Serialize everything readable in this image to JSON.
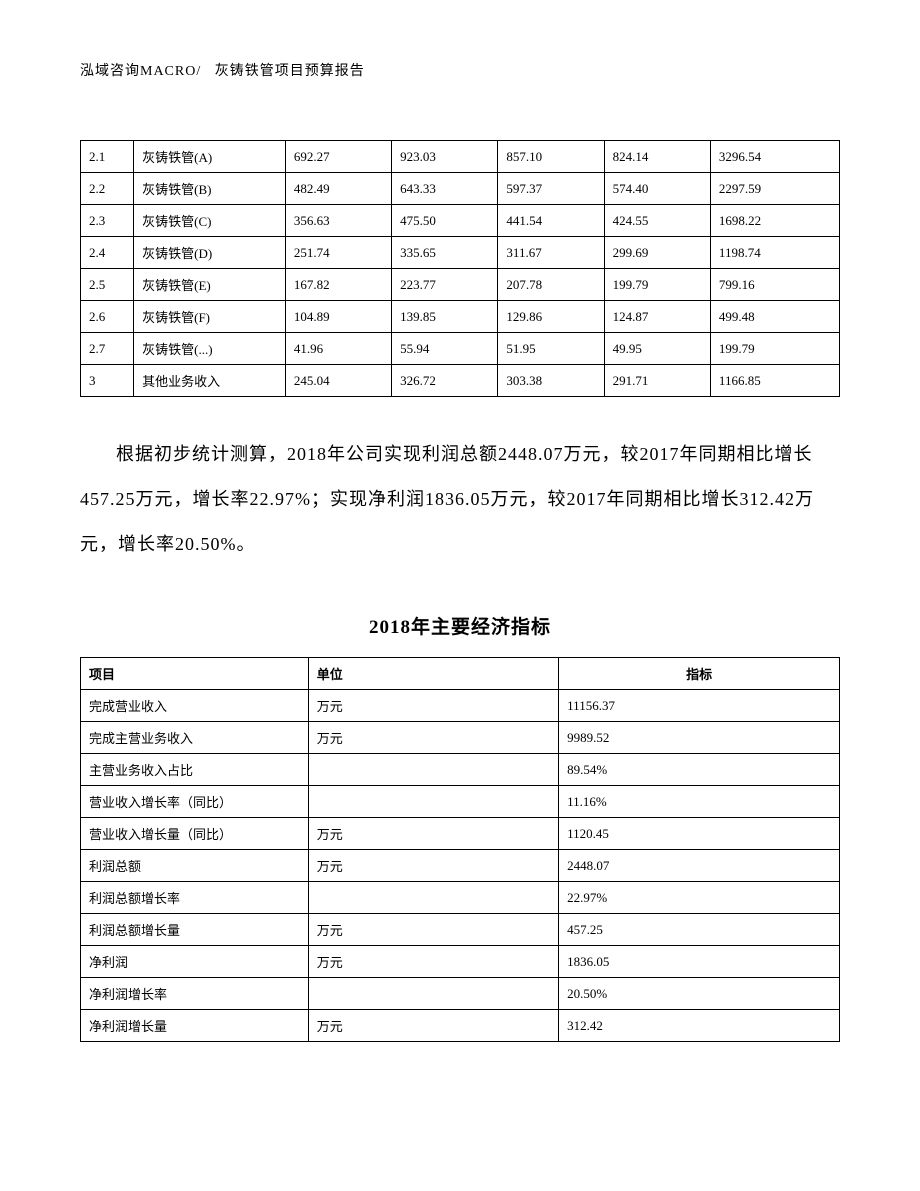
{
  "header": {
    "company": "泓域咨询MACRO/",
    "title": "灰铸铁管项目预算报告"
  },
  "table1": {
    "rows": [
      [
        "2.1",
        "灰铸铁管(A)",
        "692.27",
        "923.03",
        "857.10",
        "824.14",
        "3296.54"
      ],
      [
        "2.2",
        "灰铸铁管(B)",
        "482.49",
        "643.33",
        "597.37",
        "574.40",
        "2297.59"
      ],
      [
        "2.3",
        "灰铸铁管(C)",
        "356.63",
        "475.50",
        "441.54",
        "424.55",
        "1698.22"
      ],
      [
        "2.4",
        "灰铸铁管(D)",
        "251.74",
        "335.65",
        "311.67",
        "299.69",
        "1198.74"
      ],
      [
        "2.5",
        "灰铸铁管(E)",
        "167.82",
        "223.77",
        "207.78",
        "199.79",
        "799.16"
      ],
      [
        "2.6",
        "灰铸铁管(F)",
        "104.89",
        "139.85",
        "129.86",
        "124.87",
        "499.48"
      ],
      [
        "2.7",
        "灰铸铁管(...)",
        "41.96",
        "55.94",
        "51.95",
        "49.95",
        "199.79"
      ],
      [
        "3",
        "其他业务收入",
        "245.04",
        "326.72",
        "303.38",
        "291.71",
        "1166.85"
      ]
    ]
  },
  "paragraph": {
    "text": "根据初步统计测算，2018年公司实现利润总额2448.07万元，较2017年同期相比增长457.25万元，增长率22.97%；实现净利润1836.05万元，较2017年同期相比增长312.42万元，增长率20.50%。"
  },
  "section_title": "2018年主要经济指标",
  "table2": {
    "headers": [
      "项目",
      "单位",
      "指标"
    ],
    "rows": [
      [
        "完成营业收入",
        "万元",
        "11156.37"
      ],
      [
        "完成主营业务收入",
        "万元",
        "9989.52"
      ],
      [
        "主营业务收入占比",
        "",
        "89.54%"
      ],
      [
        "营业收入增长率（同比）",
        "",
        "11.16%"
      ],
      [
        "营业收入增长量（同比）",
        "万元",
        "1120.45"
      ],
      [
        "利润总额",
        "万元",
        "2448.07"
      ],
      [
        "利润总额增长率",
        "",
        "22.97%"
      ],
      [
        "利润总额增长量",
        "万元",
        "457.25"
      ],
      [
        "净利润",
        "万元",
        "1836.05"
      ],
      [
        "净利润增长率",
        "",
        "20.50%"
      ],
      [
        "净利润增长量",
        "万元",
        "312.42"
      ]
    ]
  }
}
